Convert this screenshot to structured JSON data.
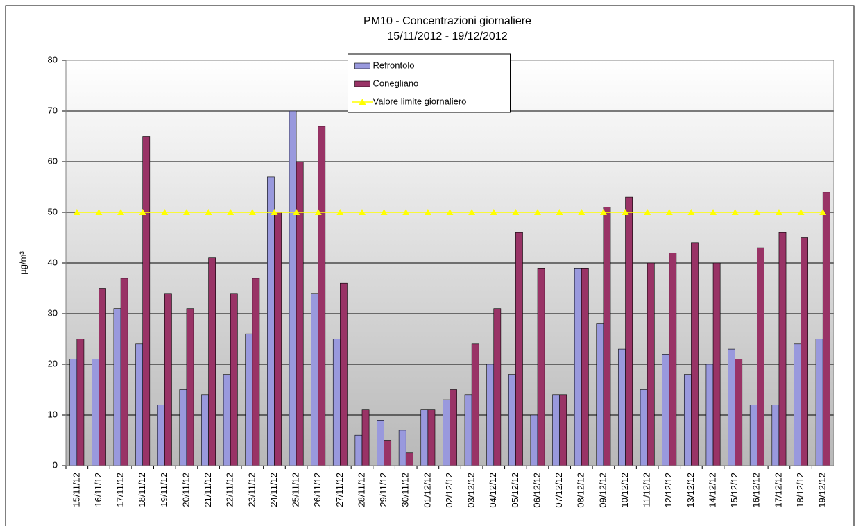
{
  "chart_data": {
    "type": "bar",
    "title": "PM10 - Concentrazioni giornaliere",
    "subtitle": "15/11/2012 - 19/12/2012",
    "y_label": "µg/m³",
    "categories": [
      "15/11/12",
      "16/11/12",
      "17/11/12",
      "18/11/12",
      "19/11/12",
      "20/11/12",
      "21/11/12",
      "22/11/12",
      "23/11/12",
      "24/11/12",
      "25/11/12",
      "26/11/12",
      "27/11/12",
      "28/11/12",
      "29/11/12",
      "30/11/12",
      "01/12/12",
      "02/12/12",
      "03/12/12",
      "04/12/12",
      "05/12/12",
      "06/12/12",
      "07/12/12",
      "08/12/12",
      "09/12/12",
      "10/12/12",
      "11/12/12",
      "12/12/12",
      "13/12/12",
      "14/12/12",
      "15/12/12",
      "16/12/12",
      "17/12/12",
      "18/12/12",
      "19/12/12"
    ],
    "series": [
      {
        "name": "Refrontolo",
        "type": "bar",
        "color": "#9999dd",
        "values": [
          21,
          21,
          31,
          24,
          12,
          15,
          14,
          18,
          26,
          57,
          70,
          34,
          25,
          6,
          9,
          7,
          11,
          13,
          14,
          20,
          18,
          10,
          14,
          39,
          28,
          23,
          15,
          22,
          18,
          20,
          23,
          12,
          12,
          24,
          25
        ]
      },
      {
        "name": "Conegliano",
        "type": "bar",
        "color": "#993366",
        "values": [
          25,
          35,
          37,
          65,
          34,
          31,
          41,
          34,
          37,
          50,
          60,
          67,
          36,
          11,
          5,
          2.5,
          11,
          15,
          24,
          31,
          46,
          39,
          14,
          39,
          51,
          53,
          40,
          42,
          44,
          40,
          21,
          43,
          46,
          45,
          54
        ]
      },
      {
        "name": "Valore limite giornaliero",
        "type": "line",
        "color": "#ffff00",
        "values": [
          50,
          50,
          50,
          50,
          50,
          50,
          50,
          50,
          50,
          50,
          50,
          50,
          50,
          50,
          50,
          50,
          50,
          50,
          50,
          50,
          50,
          50,
          50,
          50,
          50,
          50,
          50,
          50,
          50,
          50,
          50,
          50,
          50,
          50,
          50
        ]
      }
    ],
    "ylim": [
      0,
      80
    ],
    "yticks": [
      0,
      10,
      20,
      30,
      40,
      50,
      60,
      70,
      80
    ],
    "grid": true,
    "legend": "top"
  }
}
